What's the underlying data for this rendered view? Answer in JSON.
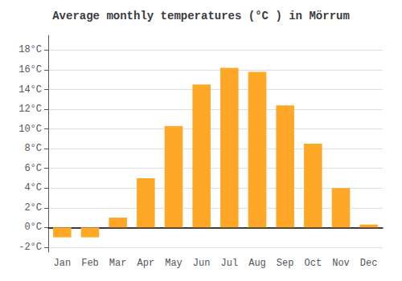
{
  "chart_data": {
    "type": "bar",
    "title": "Average monthly temperatures (°C ) in Mörrum",
    "categories": [
      "Jan",
      "Feb",
      "Mar",
      "Apr",
      "May",
      "Jun",
      "Jul",
      "Aug",
      "Sep",
      "Oct",
      "Nov",
      "Dec"
    ],
    "values": [
      -1.0,
      -1.0,
      1.0,
      5.0,
      10.3,
      14.5,
      16.2,
      15.8,
      12.4,
      8.5,
      4.0,
      0.3
    ],
    "color": "#FFA726",
    "ylim": [
      -2.5,
      19.5
    ],
    "yticks": [
      {
        "value": -2,
        "label": "-2°C"
      },
      {
        "value": 0,
        "label": "0°C"
      },
      {
        "value": 2,
        "label": "2°C"
      },
      {
        "value": 4,
        "label": "4°C"
      },
      {
        "value": 6,
        "label": "6°C"
      },
      {
        "value": 8,
        "label": "8°C"
      },
      {
        "value": 10,
        "label": "10°C"
      },
      {
        "value": 12,
        "label": "12°C"
      },
      {
        "value": 14,
        "label": "14°C"
      },
      {
        "value": 16,
        "label": "16°C"
      },
      {
        "value": 18,
        "label": "18°C"
      }
    ],
    "grid": true
  }
}
